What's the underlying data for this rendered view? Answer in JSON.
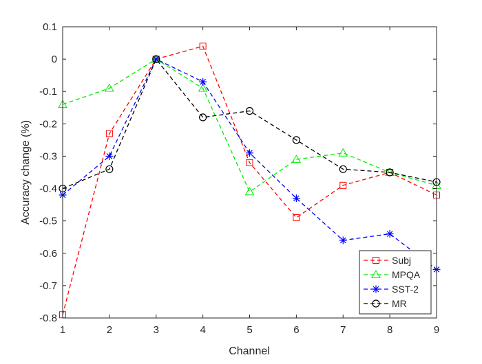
{
  "chart_data": {
    "type": "line",
    "title": "",
    "xlabel": "Channel",
    "ylabel": "Accuracy change (%)",
    "xlim": [
      1,
      9
    ],
    "ylim": [
      -0.8,
      0.1
    ],
    "xticks": [
      1,
      2,
      3,
      4,
      5,
      6,
      7,
      8,
      9
    ],
    "xtick_labels": [
      "1",
      "2",
      "3",
      "4",
      "5",
      "6",
      "7",
      "8",
      "9"
    ],
    "yticks": [
      0.1,
      0,
      -0.1,
      -0.2,
      -0.3,
      -0.4,
      -0.5,
      -0.6,
      -0.7,
      -0.8
    ],
    "ytick_labels": [
      "0.1",
      "0",
      "-0.1",
      "-0.2",
      "-0.3",
      "-0.4",
      "-0.5",
      "-0.6",
      "-0.7",
      "-0.8"
    ],
    "grid": false,
    "legend_position": "bottom-right",
    "x": [
      1,
      2,
      3,
      4,
      5,
      6,
      7,
      8,
      9
    ],
    "series": [
      {
        "name": "Subj",
        "color": "#ff0000",
        "marker": "square",
        "values": [
          -0.79,
          -0.23,
          0.0,
          0.04,
          -0.32,
          -0.49,
          -0.39,
          -0.35,
          -0.42
        ]
      },
      {
        "name": "MPQA",
        "color": "#00ee00",
        "marker": "triangle",
        "values": [
          -0.14,
          -0.09,
          0.0,
          -0.09,
          -0.41,
          -0.31,
          -0.29,
          -0.35,
          -0.39
        ]
      },
      {
        "name": "SST-2",
        "color": "#0000ff",
        "marker": "asterisk",
        "values": [
          -0.42,
          -0.3,
          0.0,
          -0.07,
          -0.29,
          -0.43,
          -0.56,
          -0.54,
          -0.65
        ]
      },
      {
        "name": "MR",
        "color": "#000000",
        "marker": "circle",
        "values": [
          -0.4,
          -0.34,
          0.0,
          -0.18,
          -0.16,
          -0.25,
          -0.34,
          -0.35,
          -0.38
        ]
      }
    ]
  }
}
